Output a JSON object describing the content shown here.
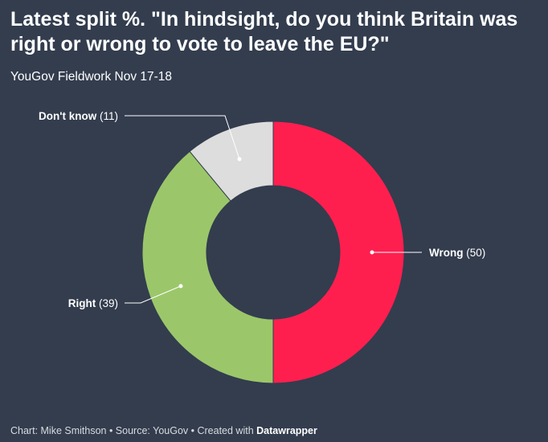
{
  "title": "Latest split %. \"In hindsight, do you think Britain was right or wrong to vote to leave the EU?\"",
  "subtitle": "YouGov Fieldwork Nov 17-18",
  "footer": {
    "prefix": "Chart: Mike Smithson • Source: YouGov • Created with",
    "brand": "Datawrapper"
  },
  "chart_data": {
    "type": "pie",
    "donut": true,
    "series": [
      {
        "name": "Wrong",
        "value": 50,
        "label": "(50)",
        "color": "#ff1f4f"
      },
      {
        "name": "Right",
        "value": 39,
        "label": "(39)",
        "color": "#9bc76a"
      },
      {
        "name": "Don't know",
        "value": 11,
        "label": "(11)",
        "color": "#dddddd"
      }
    ]
  }
}
